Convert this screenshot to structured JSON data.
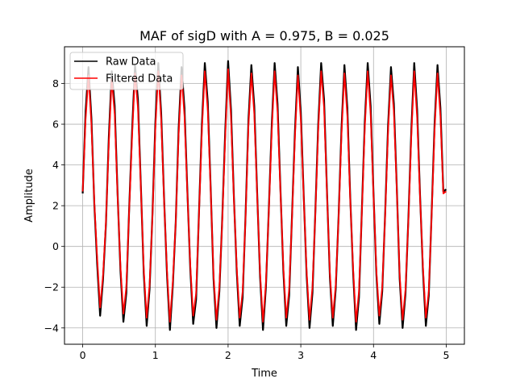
{
  "chart_data": {
    "type": "line",
    "title": "MAF of sigD with A = 0.975, B = 0.025",
    "xlabel": "Time",
    "ylabel": "Amplitude",
    "xlim": [
      -0.25,
      5.25
    ],
    "ylim": [
      -4.8,
      9.8
    ],
    "xticks": [
      0,
      1,
      2,
      3,
      4,
      5
    ],
    "xtick_labels": [
      "0",
      "1",
      "2",
      "3",
      "4",
      "5"
    ],
    "yticks": [
      -4,
      -2,
      0,
      2,
      4,
      6,
      8
    ],
    "ytick_labels": [
      "−4",
      "−2",
      "0",
      "2",
      "4",
      "6",
      "8"
    ],
    "grid": true,
    "legend_position": "top-left",
    "series": [
      {
        "name": "Raw Data",
        "color": "#000000",
        "x": [
          0,
          0.04,
          0.08,
          0.12,
          0.16,
          0.2,
          0.24,
          0.28,
          0.32,
          0.36,
          0.4,
          0.44,
          0.48,
          0.52,
          0.56,
          0.6,
          0.64,
          0.68,
          0.72,
          0.76,
          0.8,
          0.84,
          0.88,
          0.92,
          0.96,
          1.0,
          1.04,
          1.08,
          1.12,
          1.16,
          1.2,
          1.24,
          1.28,
          1.32,
          1.36,
          1.4,
          1.44,
          1.48,
          1.52,
          1.56,
          1.6,
          1.64,
          1.68,
          1.72,
          1.76,
          1.8,
          1.84,
          1.88,
          1.92,
          1.96,
          2.0,
          2.04,
          2.08,
          2.12,
          2.16,
          2.2,
          2.24,
          2.28,
          2.32,
          2.36,
          2.4,
          2.44,
          2.48,
          2.52,
          2.56,
          2.6,
          2.64,
          2.68,
          2.72,
          2.76,
          2.8,
          2.84,
          2.88,
          2.92,
          2.96,
          3.0,
          3.04,
          3.08,
          3.12,
          3.16,
          3.2,
          3.24,
          3.28,
          3.32,
          3.36,
          3.4,
          3.44,
          3.48,
          3.52,
          3.56,
          3.6,
          3.64,
          3.68,
          3.72,
          3.76,
          3.8,
          3.84,
          3.88,
          3.92,
          3.96,
          4.0,
          4.04,
          4.08,
          4.12,
          4.16,
          4.2,
          4.24,
          4.28,
          4.32,
          4.36,
          4.4,
          4.44,
          4.48,
          4.52,
          4.56,
          4.6,
          4.64,
          4.68,
          4.72,
          4.76,
          4.8,
          4.84,
          4.88,
          4.92,
          4.96,
          5.0
        ],
        "y": [
          2.6,
          6.6,
          8.8,
          6.3,
          2.1,
          -0.9,
          -3.4,
          -1.6,
          1.1,
          5.4,
          8.6,
          6.9,
          2.6,
          -1.2,
          -3.7,
          -2.3,
          1.9,
          5.7,
          8.9,
          7.2,
          3.0,
          -1.3,
          -3.9,
          -2.1,
          1.6,
          6.1,
          9.0,
          6.5,
          2.3,
          -1.4,
          -4.1,
          -1.9,
          1.2,
          5.8,
          8.8,
          6.8,
          2.7,
          -1.1,
          -3.8,
          -2.6,
          1.7,
          6.0,
          9.0,
          7.1,
          2.9,
          -1.6,
          -4.0,
          -2.2,
          1.4,
          5.6,
          9.1,
          6.7,
          2.4,
          -1.3,
          -3.9,
          -2.5,
          1.5,
          6.2,
          8.9,
          6.9,
          2.6,
          -1.5,
          -4.1,
          -2.0,
          1.8,
          5.9,
          9.0,
          7.0,
          2.8,
          -1.2,
          -3.9,
          -2.4,
          1.6,
          5.7,
          8.8,
          6.6,
          2.5,
          -1.4,
          -4.0,
          -2.3,
          1.7,
          6.0,
          9.0,
          7.2,
          2.7,
          -1.5,
          -3.9,
          -2.1,
          1.5,
          5.8,
          8.9,
          6.8,
          2.4,
          -1.3,
          -4.1,
          -2.5,
          1.8,
          6.1,
          9.0,
          6.9,
          2.6,
          -1.4,
          -3.8,
          -2.2,
          1.6,
          5.9,
          8.8,
          7.0,
          2.9,
          -1.6,
          -4.0,
          -2.3,
          1.4,
          5.7,
          9.0,
          6.7,
          2.5,
          -1.2,
          -3.9,
          -2.4,
          1.7,
          6.0,
          8.9,
          6.8,
          2.7,
          2.8
        ]
      },
      {
        "name": "Filtered Data",
        "color": "#ff0000",
        "x": [
          0,
          0.04,
          0.08,
          0.12,
          0.16,
          0.2,
          0.24,
          0.28,
          0.32,
          0.36,
          0.4,
          0.44,
          0.48,
          0.52,
          0.56,
          0.6,
          0.64,
          0.68,
          0.72,
          0.76,
          0.8,
          0.84,
          0.88,
          0.92,
          0.96,
          1.0,
          1.04,
          1.08,
          1.12,
          1.16,
          1.2,
          1.24,
          1.28,
          1.32,
          1.36,
          1.4,
          1.44,
          1.48,
          1.52,
          1.56,
          1.6,
          1.64,
          1.68,
          1.72,
          1.76,
          1.8,
          1.84,
          1.88,
          1.92,
          1.96,
          2.0,
          2.04,
          2.08,
          2.12,
          2.16,
          2.2,
          2.24,
          2.28,
          2.32,
          2.36,
          2.4,
          2.44,
          2.48,
          2.52,
          2.56,
          2.6,
          2.64,
          2.68,
          2.72,
          2.76,
          2.8,
          2.84,
          2.88,
          2.92,
          2.96,
          3.0,
          3.04,
          3.08,
          3.12,
          3.16,
          3.2,
          3.24,
          3.28,
          3.32,
          3.36,
          3.4,
          3.44,
          3.48,
          3.52,
          3.56,
          3.6,
          3.64,
          3.68,
          3.72,
          3.76,
          3.8,
          3.84,
          3.88,
          3.92,
          3.96,
          4.0,
          4.04,
          4.08,
          4.12,
          4.16,
          4.2,
          4.24,
          4.28,
          4.32,
          4.36,
          4.4,
          4.44,
          4.48,
          4.52,
          4.56,
          4.6,
          4.64,
          4.68,
          4.72,
          4.76,
          4.8,
          4.84,
          4.88,
          4.92,
          4.96,
          5.0
        ],
        "y": [
          2.7,
          6.2,
          8.4,
          6.0,
          2.2,
          -0.6,
          -3.0,
          -1.4,
          1.2,
          5.1,
          8.2,
          6.5,
          2.5,
          -1.0,
          -3.3,
          -2.0,
          1.8,
          5.4,
          8.5,
          6.8,
          2.9,
          -1.1,
          -3.5,
          -1.9,
          1.5,
          5.8,
          8.6,
          6.2,
          2.2,
          -1.2,
          -3.7,
          -1.7,
          1.2,
          5.5,
          8.4,
          6.4,
          2.6,
          -0.9,
          -3.4,
          -2.3,
          1.6,
          5.7,
          8.6,
          6.7,
          2.8,
          -1.4,
          -3.6,
          -2.0,
          1.3,
          5.3,
          8.7,
          6.3,
          2.3,
          -1.1,
          -3.5,
          -2.2,
          1.4,
          5.9,
          8.5,
          6.5,
          2.5,
          -1.3,
          -3.7,
          -1.8,
          1.7,
          5.6,
          8.6,
          6.6,
          2.7,
          -1.0,
          -3.5,
          -2.1,
          1.5,
          5.4,
          8.4,
          6.2,
          2.4,
          -1.2,
          -3.6,
          -2.0,
          1.6,
          5.7,
          8.6,
          6.8,
          2.6,
          -1.3,
          -3.5,
          -1.9,
          1.4,
          5.5,
          8.5,
          6.4,
          2.3,
          -1.1,
          -3.7,
          -2.2,
          1.7,
          5.8,
          8.6,
          6.5,
          2.5,
          -1.2,
          -3.4,
          -2.0,
          1.5,
          5.6,
          8.4,
          6.6,
          2.8,
          -1.4,
          -3.6,
          -2.1,
          1.3,
          5.4,
          8.6,
          6.3,
          2.4,
          -1.0,
          -3.5,
          -2.2,
          1.6,
          5.7,
          8.5,
          6.4,
          2.6,
          2.7
        ]
      }
    ]
  }
}
